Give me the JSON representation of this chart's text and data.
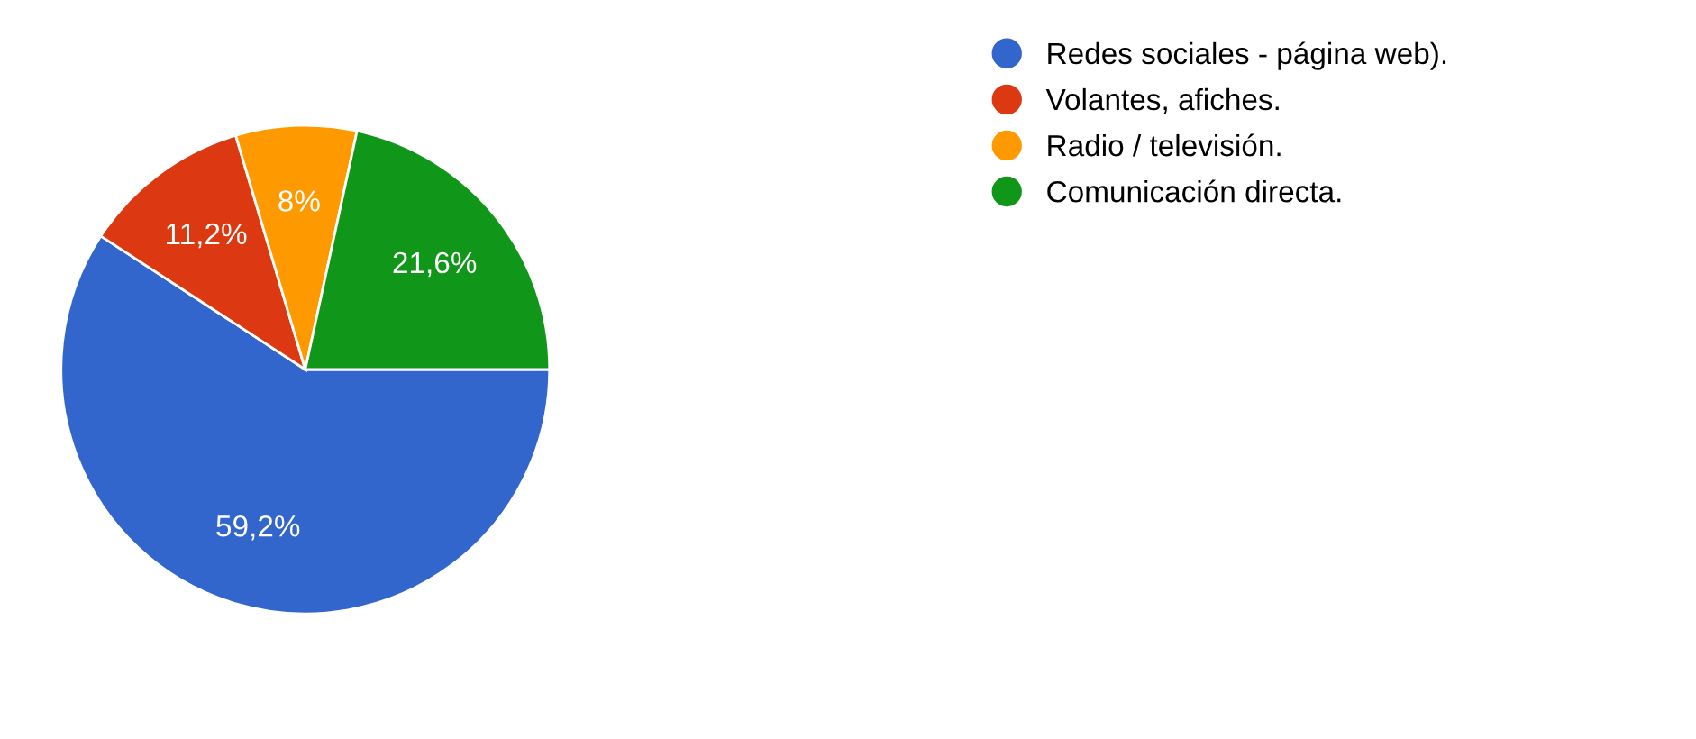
{
  "chart_data": {
    "type": "pie",
    "categories": [
      "Redes sociales - página web).",
      "Volantes, afiches.",
      "Radio / televisión.",
      "Comunicación directa."
    ],
    "values": [
      59.2,
      11.2,
      8,
      21.6
    ],
    "value_labels": [
      "59,2%",
      "11,2%",
      "8%",
      "21,6%"
    ],
    "colors": [
      "#3366cc",
      "#dc3912",
      "#ff9900",
      "#109618"
    ],
    "legend": "top right"
  }
}
